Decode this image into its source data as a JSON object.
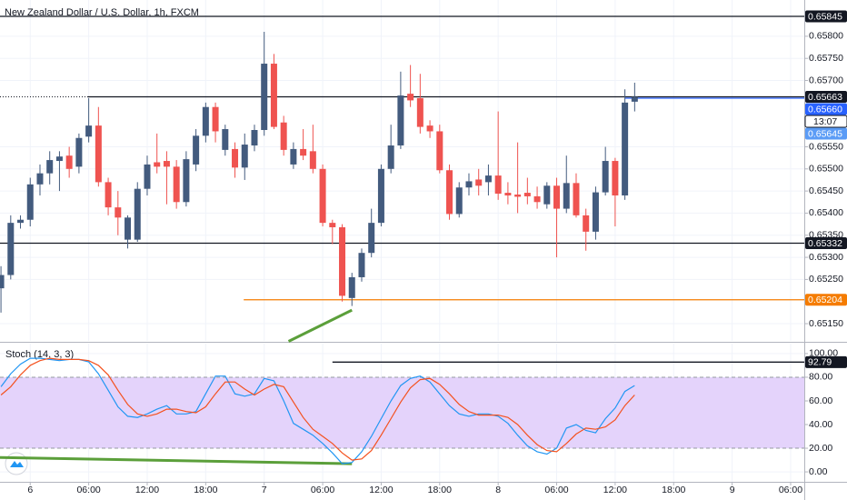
{
  "chart_data": [
    {
      "type": "candlestick",
      "title": "New Zealand Dollar / U.S. Dollar, 1h, FXCM",
      "up_color": "#435b7e",
      "down_color": "#ef5350",
      "open": [
        0.6523,
        0.6526,
        0.65378,
        0.65385,
        0.65465,
        0.6549,
        0.65518,
        0.6553,
        0.65505,
        0.65573,
        0.65598,
        0.6547,
        0.65413,
        0.6534,
        0.6534,
        0.65455,
        0.65515,
        0.65518,
        0.65505,
        0.65425,
        0.6551,
        0.65575,
        0.6564,
        0.65543,
        0.65545,
        0.65503,
        0.65553,
        0.65588,
        0.65738,
        0.65605,
        0.6551,
        0.65545,
        0.6554,
        0.655,
        0.65378,
        0.65368,
        0.65208,
        0.65255,
        0.6531,
        0.65378,
        0.655,
        0.65553,
        0.6567,
        0.6566,
        0.65598,
        0.65585,
        0.65497,
        0.65398,
        0.65458,
        0.65476,
        0.6547,
        0.65485,
        0.65446,
        0.65442,
        0.65446,
        0.65438,
        0.6542,
        0.65462,
        0.6541,
        0.65468,
        0.65395,
        0.65358,
        0.65447,
        0.65518,
        0.6544,
        0.65652
      ],
      "high": [
        0.6528,
        0.65395,
        0.65395,
        0.6548,
        0.6551,
        0.6554,
        0.6554,
        0.6555,
        0.6558,
        0.6566,
        0.6564,
        0.6548,
        0.6545,
        0.65395,
        0.6547,
        0.6553,
        0.6558,
        0.6554,
        0.6552,
        0.6554,
        0.6559,
        0.6565,
        0.6565,
        0.656,
        0.6556,
        0.6558,
        0.656,
        0.6581,
        0.6576,
        0.6562,
        0.6556,
        0.6559,
        0.656,
        0.6551,
        0.65385,
        0.65375,
        0.65265,
        0.6532,
        0.6541,
        0.6551,
        0.656,
        0.6572,
        0.65735,
        0.65715,
        0.6561,
        0.656,
        0.6551,
        0.6547,
        0.6549,
        0.655,
        0.6551,
        0.6563,
        0.6547,
        0.6556,
        0.6548,
        0.6546,
        0.6547,
        0.6548,
        0.6553,
        0.6549,
        0.6541,
        0.6546,
        0.6555,
        0.65525,
        0.6568,
        0.65695
      ],
      "low": [
        0.65175,
        0.6525,
        0.65365,
        0.6537,
        0.6544,
        0.65465,
        0.6545,
        0.6548,
        0.6549,
        0.6556,
        0.6546,
        0.65395,
        0.6535,
        0.6532,
        0.65335,
        0.6544,
        0.6549,
        0.6542,
        0.6541,
        0.65415,
        0.65495,
        0.6556,
        0.6556,
        0.6553,
        0.6548,
        0.65475,
        0.6554,
        0.65575,
        0.6559,
        0.6553,
        0.655,
        0.6552,
        0.6549,
        0.6537,
        0.6533,
        0.652,
        0.6519,
        0.65245,
        0.653,
        0.6537,
        0.6549,
        0.65545,
        0.6564,
        0.6558,
        0.6557,
        0.6549,
        0.65385,
        0.6539,
        0.6544,
        0.6544,
        0.6544,
        0.6543,
        0.6542,
        0.654,
        0.6542,
        0.6541,
        0.6541,
        0.653,
        0.654,
        0.6539,
        0.65315,
        0.6534,
        0.6544,
        0.6537,
        0.6543,
        0.6563
      ],
      "close": [
        0.6526,
        0.65378,
        0.65385,
        0.65465,
        0.6549,
        0.6552,
        0.65528,
        0.655,
        0.6557,
        0.65598,
        0.6547,
        0.65413,
        0.6539,
        0.6539,
        0.65455,
        0.6551,
        0.65505,
        0.65505,
        0.65425,
        0.65522,
        0.65575,
        0.6564,
        0.65585,
        0.6559,
        0.65503,
        0.65555,
        0.65588,
        0.65738,
        0.65595,
        0.65543,
        0.65545,
        0.6553,
        0.655,
        0.65378,
        0.65368,
        0.65213,
        0.65255,
        0.6531,
        0.65378,
        0.655,
        0.65553,
        0.65666,
        0.65655,
        0.65595,
        0.65585,
        0.65497,
        0.65398,
        0.65458,
        0.65472,
        0.65462,
        0.65485,
        0.65444,
        0.6544,
        0.65437,
        0.65438,
        0.65425,
        0.65462,
        0.6541,
        0.65468,
        0.65395,
        0.65358,
        0.65447,
        0.65518,
        0.6544,
        0.6565,
        0.65663
      ],
      "xlim": [
        -0.1,
        82.4
      ],
      "ylim": [
        0.65111,
        0.65882
      ],
      "grid": true,
      "yticks": [
        {
          "value": 0.658,
          "label": "0.65800"
        },
        {
          "value": 0.6575,
          "label": "0.65750"
        },
        {
          "value": 0.657,
          "label": "0.65700"
        },
        {
          "value": 0.6555,
          "label": "0.65550"
        },
        {
          "value": 0.655,
          "label": "0.65500"
        },
        {
          "value": 0.6545,
          "label": "0.65450"
        },
        {
          "value": 0.654,
          "label": "0.65400"
        },
        {
          "value": 0.6535,
          "label": "0.65350"
        },
        {
          "value": 0.653,
          "label": "0.65300"
        },
        {
          "value": 0.6525,
          "label": "0.65250"
        },
        {
          "value": 0.6515,
          "label": "0.65150"
        }
      ],
      "hlines": [
        {
          "value": 0.65845,
          "color": "#131722",
          "from": -0.1,
          "style": "solid"
        },
        {
          "value": 0.65663,
          "color": "#131722",
          "from": -0.1,
          "style": "dotted"
        },
        {
          "value": 0.65663,
          "color": "#131722",
          "from": 8.9,
          "style": "solid"
        },
        {
          "value": 0.6566,
          "color": "#2962ff",
          "from": 64,
          "style": "solid"
        },
        {
          "value": 0.65332,
          "color": "#131722",
          "from": -0.1,
          "style": "solid"
        },
        {
          "value": 0.65204,
          "color": "#f57c00",
          "from": 24.9,
          "style": "solid"
        }
      ],
      "segments": [
        {
          "points": [
            [
              29.5,
              0.6511
            ],
            [
              36,
              0.651807
            ]
          ],
          "color": "#5b9f3a"
        }
      ],
      "price_labels": [
        {
          "value": 0.65845,
          "label": "0.65845",
          "color": "#131722"
        },
        {
          "value": 0.65663,
          "label": "0.65663",
          "color": "#131722"
        },
        {
          "value": 0.6566,
          "label": "0.65660",
          "color": "#2962ff"
        },
        {
          "value": 0.65645,
          "label": "0.65645",
          "color": "#5b9cf6"
        },
        {
          "value": 0.65332,
          "label": "0.65332",
          "color": "#131722"
        },
        {
          "value": 0.65204,
          "label": "0.65204",
          "color": "#f57c00"
        }
      ],
      "countdown": "13:07"
    },
    {
      "type": "line",
      "title": "Stoch (14, 3, 3)",
      "series": [
        {
          "color": "#2196f3",
          "values": [
            72,
            83,
            91,
            96,
            96,
            95,
            94,
            95,
            95,
            93,
            83,
            69,
            55,
            47,
            46,
            49,
            53,
            56,
            49,
            49,
            51,
            66,
            81,
            81,
            66,
            64,
            66,
            79,
            77,
            60,
            41,
            36,
            31,
            24,
            16,
            7,
            8,
            17,
            30,
            45,
            60,
            73,
            79,
            81,
            76,
            66,
            56,
            49,
            47,
            49,
            49,
            47,
            41,
            31,
            22,
            17,
            15,
            20,
            37,
            40,
            35,
            33,
            45,
            54,
            68,
            73
          ]
        },
        {
          "color": "#f4511e",
          "values": [
            65,
            72,
            82,
            90,
            94,
            96,
            95,
            95,
            95,
            94,
            90,
            82,
            69,
            57,
            49,
            47,
            49,
            53,
            53,
            51,
            50,
            55,
            66,
            76,
            76,
            70,
            65,
            70,
            74,
            72,
            59,
            46,
            36,
            30,
            24,
            16,
            10,
            11,
            18,
            31,
            45,
            59,
            71,
            78,
            79,
            74,
            66,
            57,
            51,
            48,
            48,
            48,
            46,
            40,
            31,
            23,
            18,
            17,
            24,
            32,
            37,
            36,
            38,
            44,
            56,
            65
          ]
        }
      ],
      "xlim": [
        -0.1,
        82.4
      ],
      "ylim": [
        -8.4,
        108.4
      ],
      "grid": true,
      "band": [
        20,
        80
      ],
      "band_color": "#e4d3fb",
      "yticks": [
        {
          "value": 100,
          "label": "100.00"
        },
        {
          "value": 80,
          "label": "80.00"
        },
        {
          "value": 60,
          "label": "60.00"
        },
        {
          "value": 40,
          "label": "40.00"
        },
        {
          "value": 20,
          "label": "20.00"
        },
        {
          "value": 0,
          "label": "0.00"
        }
      ],
      "xticks": [
        {
          "value": 3,
          "label": "6"
        },
        {
          "value": 9,
          "label": "06:00"
        },
        {
          "value": 15,
          "label": "12:00"
        },
        {
          "value": 21,
          "label": "18:00"
        },
        {
          "value": 27,
          "label": "7"
        },
        {
          "value": 33,
          "label": "06:00"
        },
        {
          "value": 39,
          "label": "12:00"
        },
        {
          "value": 45,
          "label": "18:00"
        },
        {
          "value": 51,
          "label": "8"
        },
        {
          "value": 57,
          "label": "06:00"
        },
        {
          "value": 63,
          "label": "12:00"
        },
        {
          "value": 69,
          "label": "18:00"
        },
        {
          "value": 75,
          "label": "9"
        },
        {
          "value": 81,
          "label": "06:00"
        }
      ],
      "hlines": [
        {
          "value": 92.79,
          "color": "#131722",
          "from": 34,
          "style": "solid"
        }
      ],
      "price_labels": [
        {
          "value": 92.79,
          "label": "92.79",
          "color": "#131722"
        }
      ],
      "segments": [
        {
          "points": [
            [
              -0.1,
              12.2
            ],
            [
              36,
              6.9
            ]
          ],
          "color": "#5b9f3a"
        }
      ]
    }
  ]
}
